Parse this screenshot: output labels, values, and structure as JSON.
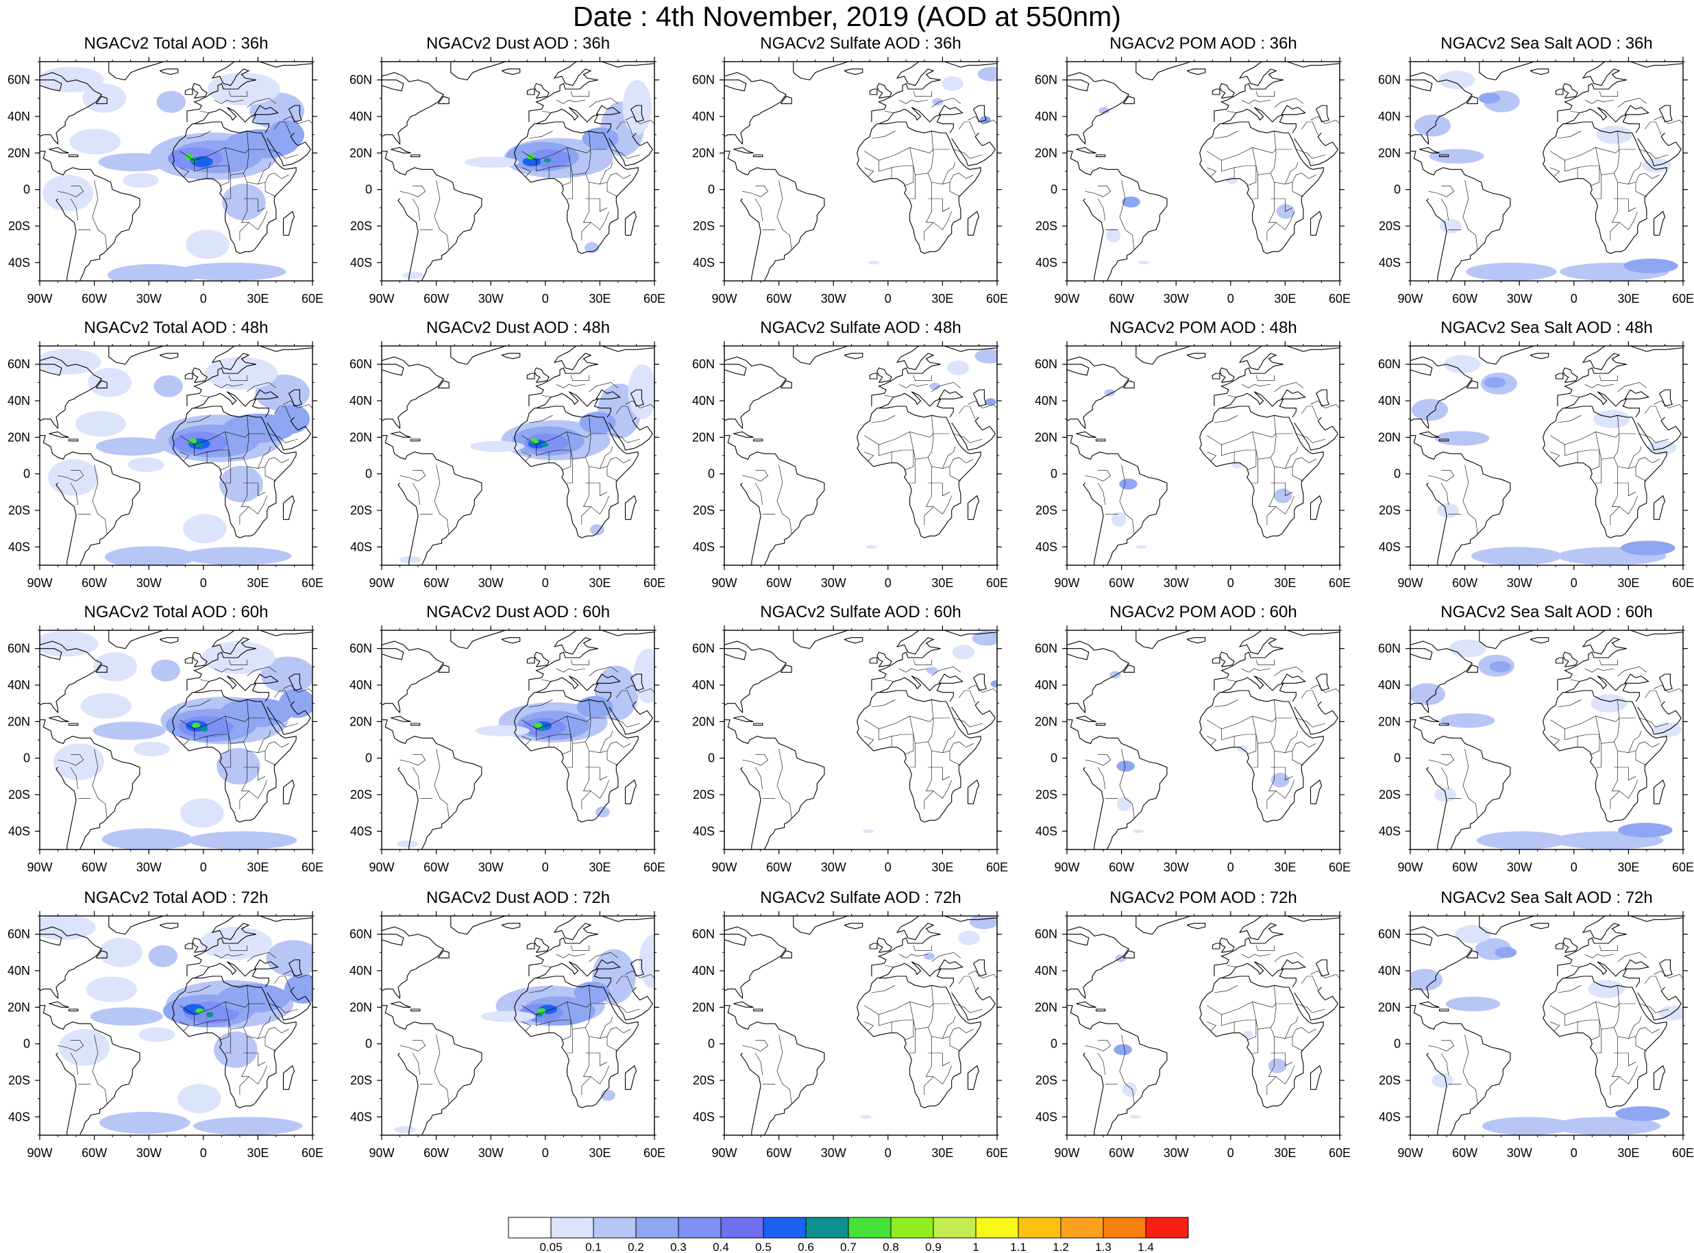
{
  "title": "Date : 4th November, 2019 (AOD at 550nm)",
  "colors": {
    "c005": "#dce4fb",
    "c01": "#b8c6f6",
    "c02": "#8fa6f2",
    "c03": "#7f90f4",
    "c04": "#6f6ff0",
    "c05": "#1c62f0",
    "c06": "#0e9090",
    "c07": "#46e038",
    "c08": "#90ee20",
    "c09": "#c4ec50",
    "c1": "#f8f818",
    "c11": "#fcc010",
    "c12": "#fca020",
    "c13": "#f88010",
    "c14": "#f82010"
  },
  "colorbar": {
    "labels": [
      "0.05",
      "0.1",
      "0.2",
      "0.3",
      "0.4",
      "0.5",
      "0.6",
      "0.7",
      "0.8",
      "0.9",
      "1",
      "1.1",
      "1.2",
      "1.3",
      "1.4"
    ],
    "colors": [
      "#ffffff",
      "#dce4fb",
      "#b8c6f6",
      "#8fa6f2",
      "#7f90f4",
      "#6f6ff0",
      "#1c62f0",
      "#0e9090",
      "#46e038",
      "#90ee20",
      "#c4ec50",
      "#f8f818",
      "#fcc010",
      "#fca020",
      "#f88010",
      "#f82010"
    ]
  },
  "axes": {
    "lon_labels": [
      "90W",
      "60W",
      "30W",
      "0",
      "30E",
      "60E"
    ],
    "lat_labels": [
      "60N",
      "40N",
      "20N",
      "0",
      "20S",
      "40S"
    ],
    "lon_range": [
      -90,
      60
    ],
    "lat_range": [
      -50,
      70
    ]
  },
  "panels": [
    {
      "title": "NGACv2 Total AOD : 36h"
    },
    {
      "title": "NGACv2 Dust AOD : 36h"
    },
    {
      "title": "NGACv2 Sulfate AOD : 36h"
    },
    {
      "title": "NGACv2 POM AOD : 36h"
    },
    {
      "title": "NGACv2 Sea Salt AOD : 36h"
    },
    {
      "title": "NGACv2 Total AOD : 48h"
    },
    {
      "title": "NGACv2 Dust AOD : 48h"
    },
    {
      "title": "NGACv2 Sulfate AOD : 48h"
    },
    {
      "title": "NGACv2 POM AOD : 48h"
    },
    {
      "title": "NGACv2 Sea Salt AOD : 48h"
    },
    {
      "title": "NGACv2 Total AOD : 60h"
    },
    {
      "title": "NGACv2 Dust AOD : 60h"
    },
    {
      "title": "NGACv2 Sulfate AOD : 60h"
    },
    {
      "title": "NGACv2 POM AOD : 60h"
    },
    {
      "title": "NGACv2 Sea Salt AOD : 60h"
    },
    {
      "title": "NGACv2 Total AOD : 72h"
    },
    {
      "title": "NGACv2 Dust AOD : 72h"
    },
    {
      "title": "NGACv2 Sulfate AOD : 72h"
    },
    {
      "title": "NGACv2 POM AOD : 72h"
    },
    {
      "title": "NGACv2 Sea Salt  AOD : 72h"
    }
  ]
}
